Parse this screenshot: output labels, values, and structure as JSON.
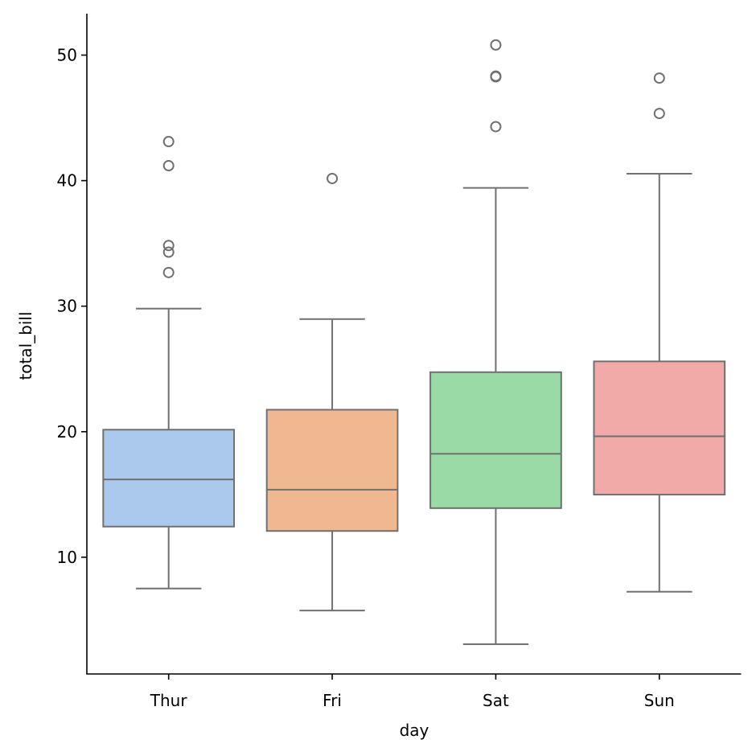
{
  "chart_data": {
    "type": "box",
    "title": "",
    "xlabel": "day",
    "ylabel": "total_bill",
    "categories": [
      "Thur",
      "Fri",
      "Sat",
      "Sun"
    ],
    "yticks": [
      10,
      20,
      30,
      40,
      50
    ],
    "ylim": [
      0.7,
      53.3
    ],
    "grid": false,
    "legend": "none",
    "line_color": "#707070",
    "boxes": [
      {
        "name": "Thur",
        "color": "#abc9ec",
        "whisker_low": 7.51,
        "q1": 12.44,
        "median": 16.2,
        "q3": 20.16,
        "whisker_high": 29.8,
        "outliers": [
          32.68,
          34.3,
          34.83,
          41.19,
          43.11
        ]
      },
      {
        "name": "Fri",
        "color": "#f0b890",
        "whisker_low": 5.75,
        "q1": 12.09,
        "median": 15.38,
        "q3": 21.75,
        "whisker_high": 28.97,
        "outliers": [
          40.17
        ]
      },
      {
        "name": "Sat",
        "color": "#99daa7",
        "whisker_low": 3.07,
        "q1": 13.91,
        "median": 18.24,
        "q3": 24.74,
        "whisker_high": 39.42,
        "outliers": [
          44.3,
          48.27,
          48.33,
          50.81
        ]
      },
      {
        "name": "Sun",
        "color": "#f1aaa8",
        "whisker_low": 7.25,
        "q1": 14.99,
        "median": 19.63,
        "q3": 25.6,
        "whisker_high": 40.55,
        "outliers": [
          45.35,
          48.17
        ]
      }
    ]
  }
}
